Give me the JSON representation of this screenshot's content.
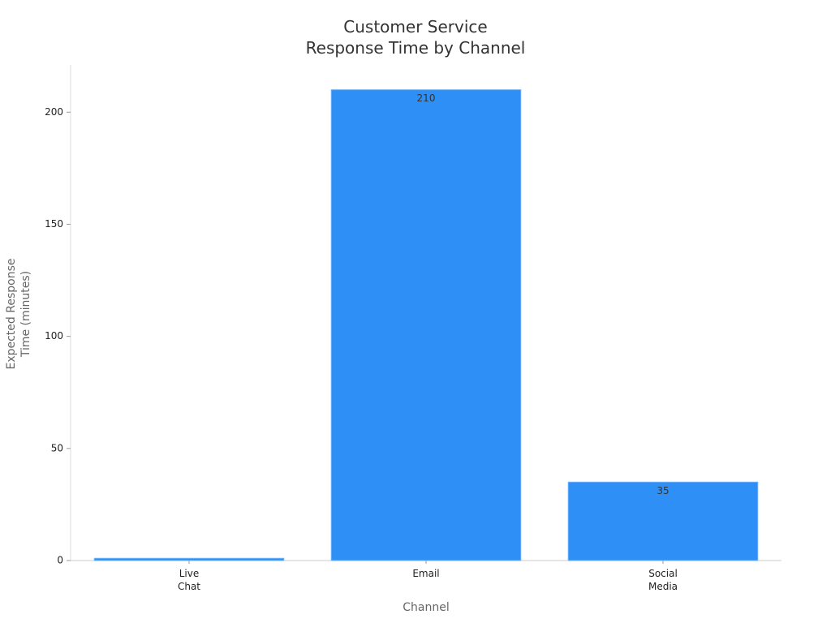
{
  "chart_data": {
    "type": "bar",
    "title": "Customer Service\nResponse Time by Channel",
    "x_label": "Channel",
    "y_label": "Expected Response\nTime (minutes)",
    "categories": [
      "Live\nChat",
      "Email",
      "Social\nMedia"
    ],
    "values": [
      1,
      210,
      35
    ],
    "color": "#2e90f7",
    "ylim": [
      0,
      220
    ],
    "yticks": [
      0,
      50,
      100,
      150,
      200
    ]
  }
}
